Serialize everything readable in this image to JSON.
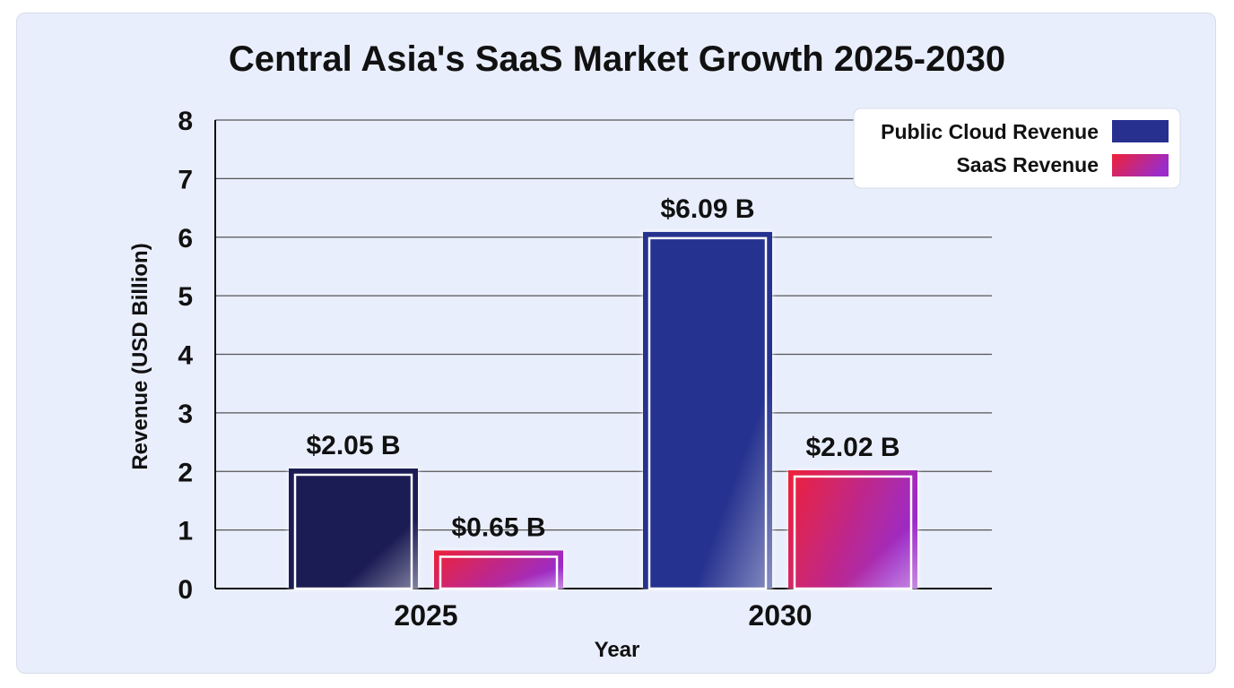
{
  "chart_data": {
    "type": "bar",
    "title": "Central Asia's SaaS Market Growth 2025-2030",
    "xlabel": "Year",
    "ylabel": "Revenue (USD Billion)",
    "categories": [
      "2025",
      "2030"
    ],
    "series": [
      {
        "name": "Public Cloud Revenue",
        "values": [
          2.05,
          6.09
        ],
        "labels": [
          "$2.05 B",
          "$6.09 B"
        ],
        "colors": [
          "#1a1d55",
          "#28308f"
        ]
      },
      {
        "name": "SaaS Revenue",
        "values": [
          0.65,
          2.02
        ],
        "labels": [
          "$0.65 B",
          "$2.02 B"
        ],
        "gradient": [
          "#ee2238",
          "#9b2cc8"
        ]
      }
    ],
    "ylim": [
      0,
      8
    ],
    "yticks": [
      "0",
      "1",
      "2",
      "3",
      "4",
      "5",
      "6",
      "7",
      "8"
    ],
    "grid": true,
    "legend_position": "top-right"
  }
}
